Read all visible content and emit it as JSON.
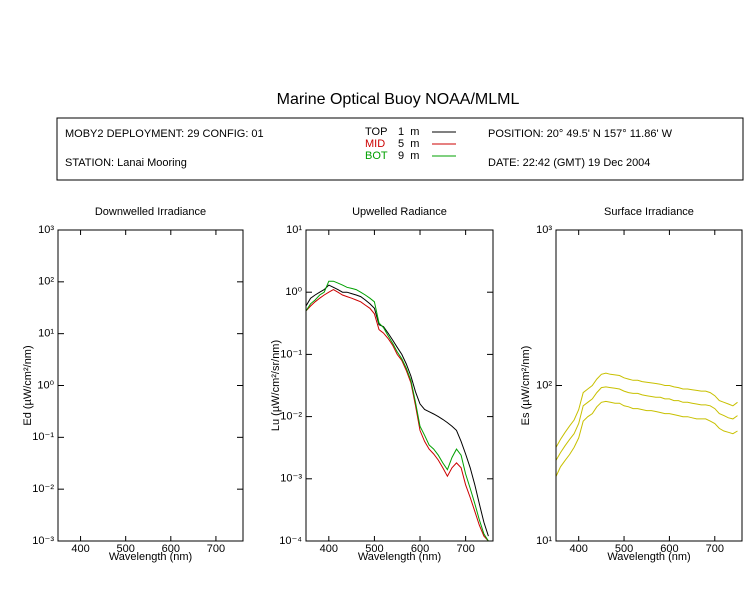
{
  "header": {
    "title": "Marine Optical Buoy NOAA/MLML",
    "deployment": "MOBY2 DEPLOYMENT: 29 CONFIG: 01",
    "station": "STATION: Lanai Mooring",
    "position": "POSITION: 20° 49.5' N   157° 11.86' W",
    "date": "DATE: 22:42 (GMT) 19 Dec 2004"
  },
  "chart_data": [
    {
      "type": "line",
      "title": "Downwelled Irradiance",
      "x_label": "Wavelength (nm)",
      "y_label": "Ed  (µW/cm²/nm)",
      "log_y": true,
      "xlim": [
        350,
        760
      ],
      "xticks": [
        400,
        500,
        600,
        700
      ],
      "ylim": [
        0.001,
        1000
      ],
      "yticks": [
        {
          "value": 0.001,
          "label": "10⁻³"
        },
        {
          "value": 0.01,
          "label": "10⁻²"
        },
        {
          "value": 0.1,
          "label": "10⁻¹"
        },
        {
          "value": 1,
          "label": "10⁰"
        },
        {
          "value": 10,
          "label": "10¹"
        },
        {
          "value": 100,
          "label": "10²"
        },
        {
          "value": 1000,
          "label": "10³"
        }
      ],
      "x": [],
      "series": []
    },
    {
      "type": "line",
      "title": "Upwelled Radiance",
      "x_label": "Wavelength (nm)",
      "y_label": "Lu  (µW/cm²/sr/nm)",
      "log_y": true,
      "xlim": [
        350,
        760
      ],
      "xticks": [
        400,
        500,
        600,
        700
      ],
      "ylim": [
        0.0001,
        10
      ],
      "yticks": [
        {
          "value": 0.0001,
          "label": "10⁻⁴"
        },
        {
          "value": 0.001,
          "label": "10⁻³"
        },
        {
          "value": 0.01,
          "label": "10⁻²"
        },
        {
          "value": 0.1,
          "label": "10⁻¹"
        },
        {
          "value": 1,
          "label": "10⁰"
        },
        {
          "value": 10,
          "label": "10¹"
        }
      ],
      "x": [
        350,
        360,
        370,
        380,
        390,
        400,
        410,
        420,
        430,
        440,
        450,
        460,
        470,
        480,
        490,
        500,
        510,
        520,
        530,
        540,
        550,
        560,
        570,
        580,
        590,
        600,
        610,
        620,
        630,
        640,
        650,
        660,
        670,
        680,
        690,
        700,
        710,
        720,
        730,
        740,
        750
      ],
      "series": [
        {
          "name": "TOP",
          "depth": "1  m",
          "color": "#000000",
          "values": [
            0.6,
            0.8,
            0.9,
            1.0,
            1.1,
            1.3,
            1.2,
            1.1,
            1.0,
            1.0,
            0.95,
            0.9,
            0.85,
            0.75,
            0.65,
            0.55,
            0.3,
            0.28,
            0.22,
            0.17,
            0.13,
            0.1,
            0.07,
            0.045,
            0.025,
            0.016,
            0.013,
            0.012,
            0.011,
            0.01,
            0.009,
            0.008,
            0.007,
            0.006,
            0.004,
            0.0025,
            0.0015,
            0.0008,
            0.0004,
            0.0002,
            0.00012
          ]
        },
        {
          "name": "MID",
          "depth": "5  m",
          "color": "#cc0000",
          "values": [
            0.5,
            0.6,
            0.7,
            0.8,
            0.9,
            1.0,
            1.1,
            1.0,
            0.9,
            0.85,
            0.8,
            0.75,
            0.7,
            0.62,
            0.55,
            0.45,
            0.25,
            0.22,
            0.18,
            0.14,
            0.1,
            0.08,
            0.055,
            0.035,
            0.015,
            0.006,
            0.004,
            0.003,
            0.0025,
            0.002,
            0.0015,
            0.0011,
            0.0015,
            0.0018,
            0.0015,
            0.0008,
            0.0005,
            0.0003,
            0.00018,
            0.00012,
            0.0001
          ]
        },
        {
          "name": "BOT",
          "depth": "9  m",
          "color": "#00a000",
          "values": [
            0.5,
            0.65,
            0.75,
            0.9,
            1.0,
            1.5,
            1.5,
            1.4,
            1.3,
            1.2,
            1.15,
            1.1,
            1.0,
            0.9,
            0.8,
            0.7,
            0.32,
            0.27,
            0.2,
            0.15,
            0.11,
            0.085,
            0.06,
            0.038,
            0.017,
            0.007,
            0.005,
            0.0035,
            0.003,
            0.0024,
            0.0018,
            0.0014,
            0.0022,
            0.003,
            0.0024,
            0.0012,
            0.0007,
            0.0004,
            0.00022,
            0.00013,
            0.0001
          ]
        }
      ]
    },
    {
      "type": "line",
      "title": "Surface Irradiance",
      "x_label": "Wavelength (nm)",
      "y_label": "Es  (µW/cm²/nm)",
      "log_y": true,
      "xlim": [
        350,
        760
      ],
      "xticks": [
        400,
        500,
        600,
        700
      ],
      "ylim": [
        10,
        1000
      ],
      "yticks": [
        {
          "value": 10,
          "label": "10¹"
        },
        {
          "value": 100,
          "label": "10²"
        },
        {
          "value": 1000,
          "label": "10³"
        }
      ],
      "x": [
        350,
        360,
        370,
        380,
        390,
        400,
        410,
        420,
        430,
        440,
        450,
        460,
        470,
        480,
        490,
        500,
        510,
        520,
        530,
        540,
        550,
        560,
        570,
        580,
        590,
        600,
        610,
        620,
        630,
        640,
        650,
        660,
        670,
        680,
        690,
        700,
        710,
        720,
        730,
        740,
        750
      ],
      "series": [
        {
          "color": "#c8c000",
          "values": [
            40,
            45,
            50,
            55,
            60,
            70,
            90,
            95,
            100,
            110,
            118,
            120,
            118,
            117,
            116,
            112,
            110,
            108,
            108,
            106,
            105,
            104,
            103,
            102,
            100,
            100,
            98,
            97,
            95,
            95,
            94,
            93,
            92,
            92,
            90,
            86,
            80,
            78,
            76,
            74,
            78
          ]
        },
        {
          "color": "#c8c000",
          "values": [
            33,
            37,
            41,
            45,
            49,
            57,
            74,
            78,
            82,
            90,
            97,
            98,
            97,
            96,
            95,
            92,
            90,
            89,
            89,
            87,
            86,
            85,
            84,
            84,
            82,
            82,
            80,
            80,
            78,
            78,
            77,
            76,
            75,
            75,
            74,
            71,
            66,
            64,
            62,
            61,
            64
          ]
        },
        {
          "color": "#c8c000",
          "values": [
            26,
            30,
            33,
            36,
            40,
            46,
            59,
            63,
            66,
            73,
            78,
            79,
            78,
            77,
            77,
            74,
            73,
            71,
            71,
            70,
            69,
            69,
            68,
            67,
            66,
            66,
            65,
            64,
            63,
            63,
            62,
            61,
            61,
            61,
            59,
            57,
            53,
            51,
            50,
            49,
            51
          ]
        }
      ]
    }
  ]
}
